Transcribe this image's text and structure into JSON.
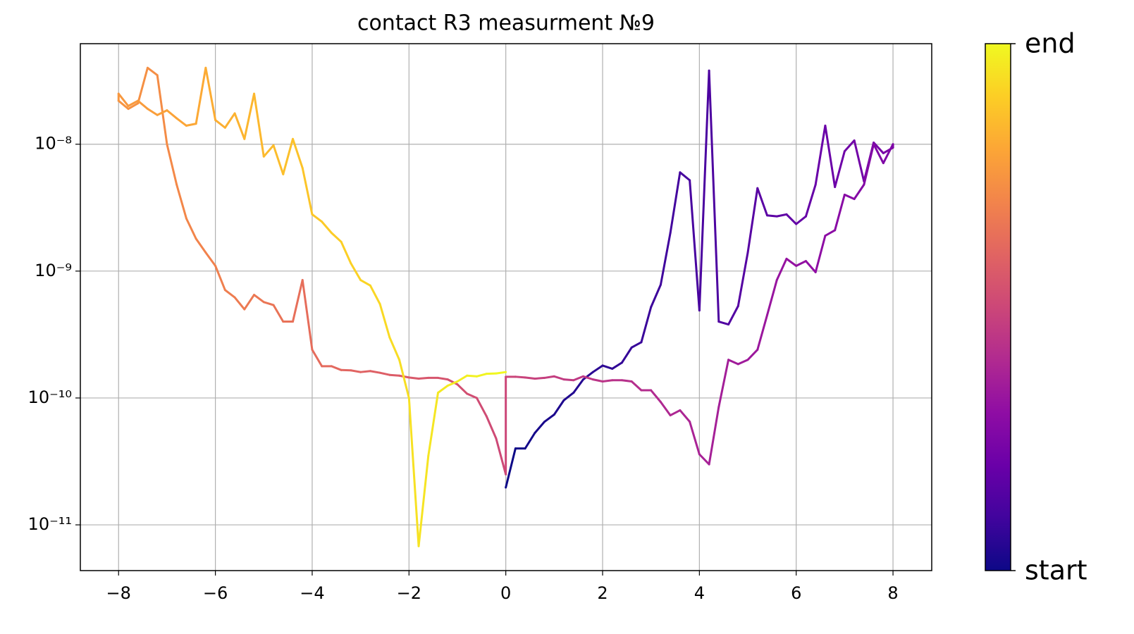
{
  "chart_data": {
    "type": "line",
    "title": "contact R3 measurment №9",
    "x": [
      0,
      0.2,
      0.4,
      0.6,
      0.8,
      1,
      1.2,
      1.4,
      1.6,
      1.8,
      2,
      2.2,
      2.4,
      2.6,
      2.8,
      3,
      3.2,
      3.4,
      3.6,
      3.8,
      4,
      4.2,
      4.4,
      4.6,
      4.8,
      5,
      5.2,
      5.4,
      5.6,
      5.8,
      6,
      6.2,
      6.4,
      6.6,
      6.8,
      7,
      7.2,
      7.4,
      7.6,
      7.8,
      8,
      8,
      7.8,
      7.6,
      7.4,
      7.2,
      7,
      6.8,
      6.6,
      6.4,
      6.2,
      6,
      5.8,
      5.6,
      5.4,
      5.2,
      5,
      4.8,
      4.6,
      4.4,
      4.2,
      4,
      3.8,
      3.6,
      3.4,
      3.2,
      3,
      2.8,
      2.6,
      2.4,
      2.2,
      2,
      1.8,
      1.6,
      1.4,
      1.2,
      1,
      0.8,
      0.6,
      0.4,
      0.2,
      0,
      0,
      -0.2,
      -0.4,
      -0.6,
      -0.8,
      -1,
      -1.2,
      -1.4,
      -1.6,
      -1.8,
      -2,
      -2.2,
      -2.4,
      -2.6,
      -2.8,
      -3,
      -3.2,
      -3.4,
      -3.6,
      -3.8,
      -4,
      -4.2,
      -4.4,
      -4.6,
      -4.8,
      -5,
      -5.2,
      -5.4,
      -5.6,
      -5.8,
      -6,
      -6.2,
      -6.4,
      -6.6,
      -6.8,
      -7,
      -7.2,
      -7.4,
      -7.6,
      -7.8,
      -8,
      -8,
      -7.8,
      -7.6,
      -7.4,
      -7.2,
      -7,
      -6.8,
      -6.6,
      -6.4,
      -6.2,
      -6,
      -5.8,
      -5.6,
      -5.4,
      -5.2,
      -5,
      -4.8,
      -4.6,
      -4.4,
      -4.2,
      -4,
      -3.8,
      -3.6,
      -3.4,
      -3.2,
      -3,
      -2.8,
      -2.6,
      -2.4,
      -2.2,
      -2,
      -1.8,
      -1.6,
      -1.4,
      -1.2,
      -1,
      -0.8,
      -0.6,
      -0.4,
      -0.2,
      0
    ],
    "values": [
      1.97e-11,
      4e-11,
      4e-11,
      5.3e-11,
      6.5e-11,
      7.4e-11,
      9.6e-11,
      1.1e-10,
      1.4e-10,
      1.6e-10,
      1.8e-10,
      1.7e-10,
      1.9e-10,
      2.5e-10,
      2.75e-10,
      5.2e-10,
      7.8e-10,
      2e-09,
      6e-09,
      5.2e-09,
      4.9e-10,
      3.8e-08,
      4e-10,
      3.8e-10,
      5.3e-10,
      1.4e-09,
      4.5e-09,
      2.75e-09,
      2.7e-09,
      2.8e-09,
      2.35e-09,
      2.7e-09,
      4.8e-09,
      1.4e-08,
      4.6e-09,
      8.8e-09,
      1.07e-08,
      5.1e-09,
      1.03e-08,
      8.5e-09,
      9.4e-09,
      1e-08,
      7.1e-09,
      1e-08,
      4.8e-09,
      3.7e-09,
      4e-09,
      2.1e-09,
      1.9e-09,
      9.8e-10,
      1.2e-09,
      1.1e-09,
      1.25e-09,
      8.5e-10,
      4.5e-10,
      2.4e-10,
      2e-10,
      1.85e-10,
      2e-10,
      8.5e-11,
      3e-11,
      3.6e-11,
      6.5e-11,
      8e-11,
      7.3e-11,
      9.3e-11,
      1.15e-10,
      1.15e-10,
      1.35e-10,
      1.38e-10,
      1.38e-10,
      1.35e-10,
      1.4e-10,
      1.48e-10,
      1.38e-10,
      1.4e-10,
      1.48e-10,
      1.44e-10,
      1.42e-10,
      1.45e-10,
      1.47e-10,
      1.47e-10,
      2.5e-11,
      4.8e-11,
      7.2e-11,
      1e-10,
      1.08e-10,
      1.28e-10,
      1.4e-10,
      1.44e-10,
      1.44e-10,
      1.42e-10,
      1.45e-10,
      1.5e-10,
      1.52e-10,
      1.58e-10,
      1.63e-10,
      1.6e-10,
      1.65e-10,
      1.66e-10,
      1.78e-10,
      1.78e-10,
      2.4e-10,
      8.5e-10,
      4e-10,
      4e-10,
      5.4e-10,
      5.7e-10,
      6.5e-10,
      5e-10,
      6.2e-10,
      7.1e-10,
      1.1e-09,
      1.4e-09,
      1.8e-09,
      2.6e-09,
      4.8e-09,
      1e-08,
      3.5e-08,
      4e-08,
      2.1e-08,
      1.9e-08,
      2.2e-08,
      2.5e-08,
      2e-08,
      2.2e-08,
      1.9e-08,
      1.7e-08,
      1.85e-08,
      1.6e-08,
      1.4e-08,
      1.45e-08,
      4e-08,
      1.55e-08,
      1.35e-08,
      1.75e-08,
      1.1e-08,
      2.5e-08,
      8e-09,
      9.8e-09,
      5.8e-09,
      1.1e-08,
      6.5e-09,
      2.8e-09,
      2.45e-09,
      2e-09,
      1.7e-09,
      1.15e-09,
      8.5e-10,
      7.7e-10,
      5.5e-10,
      3e-10,
      2e-10,
      1e-10,
      6.8e-12,
      3.5e-11,
      1.1e-10,
      1.25e-10,
      1.35e-10,
      1.5e-10,
      1.48e-10,
      1.55e-10,
      1.56e-10,
      1.6e-10
    ],
    "colormap": "plasma",
    "colorbar_labels": [
      "start",
      "end"
    ],
    "xlim": [
      -8.79,
      8.8
    ],
    "xticks": [
      {
        "value": -8,
        "label": "−8"
      },
      {
        "value": -6,
        "label": "−6"
      },
      {
        "value": -4,
        "label": "−4"
      },
      {
        "value": -2,
        "label": "−2"
      },
      0,
      2,
      4,
      6,
      8
    ],
    "ylog": true,
    "ylim": [
      4.36e-12,
      6.2e-08
    ],
    "yticks": [
      {
        "value": 1e-11,
        "label": "10⁻¹¹"
      },
      {
        "value": 1e-10,
        "label": "10⁻¹⁰"
      },
      {
        "value": 1e-09,
        "label": "10⁻⁹"
      },
      {
        "value": 1e-08,
        "label": "10⁻⁸"
      }
    ],
    "grid": true
  }
}
